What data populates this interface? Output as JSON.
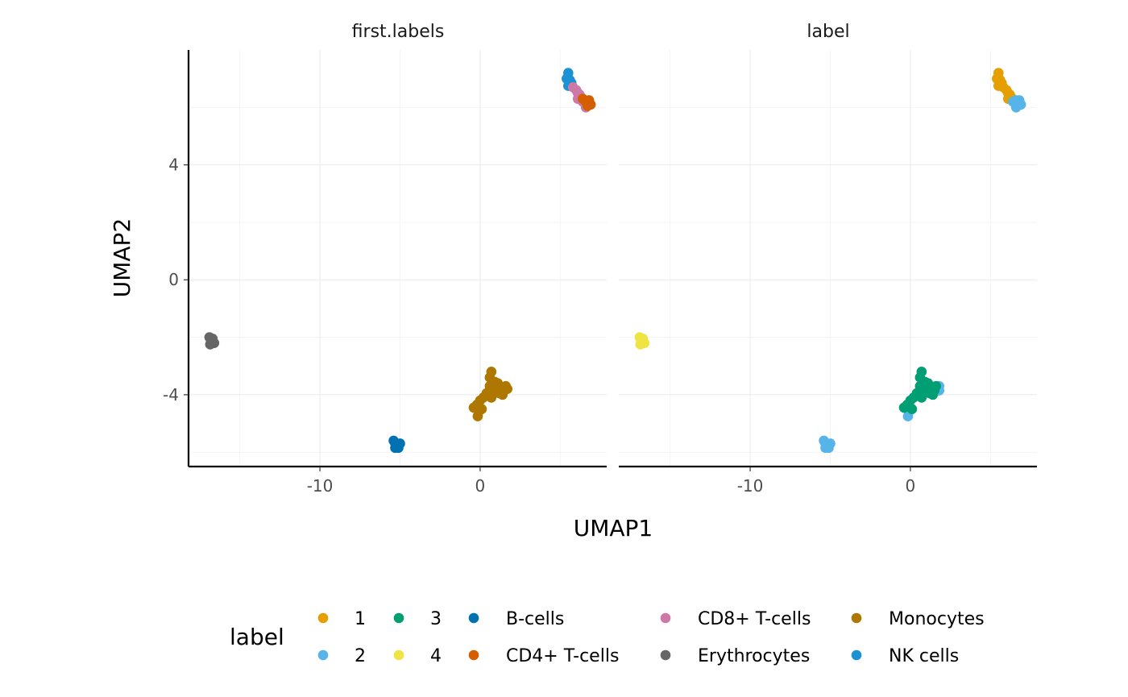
{
  "chart_data": {
    "type": "scatter",
    "xlabel": "UMAP1",
    "ylabel": "UMAP2",
    "xlim": [
      -18.2,
      7.9
    ],
    "ylim": [
      -6.5,
      8.0
    ],
    "x_ticks": [
      -10,
      0
    ],
    "y_ticks": [
      4,
      0,
      -4
    ],
    "grid": true,
    "legend_position": "bottom",
    "legend_title": "label",
    "legend": [
      {
        "label": "1",
        "color": "#E69F00"
      },
      {
        "label": "2",
        "color": "#56B4E9"
      },
      {
        "label": "3",
        "color": "#009E73"
      },
      {
        "label": "4",
        "color": "#F0E442"
      },
      {
        "label": "B-cells",
        "color": "#0072B2"
      },
      {
        "label": "CD4+ T-cells",
        "color": "#D55E00"
      },
      {
        "label": "CD8+ T-cells",
        "color": "#CC79A7"
      },
      {
        "label": "Erythrocytes",
        "color": "#666666"
      },
      {
        "label": "Monocytes",
        "color": "#AD7700"
      },
      {
        "label": "NK cells",
        "color": "#1C91D4"
      }
    ],
    "panels": [
      {
        "title": "first.labels",
        "series": [
          {
            "name": "NK cells",
            "color": "#1C91D4",
            "points": [
              [
                5.5,
                7.2
              ],
              [
                5.4,
                7.0
              ],
              [
                5.6,
                6.95
              ],
              [
                5.7,
                6.85
              ],
              [
                5.5,
                6.75
              ]
            ]
          },
          {
            "name": "CD8+ T-cells",
            "color": "#CC79A7",
            "points": [
              [
                5.8,
                6.7
              ],
              [
                6.0,
                6.6
              ],
              [
                6.1,
                6.5
              ],
              [
                6.2,
                6.45
              ],
              [
                6.3,
                6.35
              ],
              [
                6.1,
                6.3
              ],
              [
                6.4,
                6.2
              ],
              [
                6.6,
                6.0
              ]
            ]
          },
          {
            "name": "CD4+ T-cells",
            "color": "#D55E00",
            "points": [
              [
                6.4,
                6.3
              ],
              [
                6.6,
                6.2
              ],
              [
                6.8,
                6.25
              ],
              [
                6.9,
                6.1
              ],
              [
                6.7,
                6.05
              ]
            ]
          },
          {
            "name": "Erythrocytes",
            "color": "#666666",
            "points": [
              [
                -16.9,
                -2.0
              ],
              [
                -16.7,
                -2.05
              ],
              [
                -16.8,
                -2.15
              ],
              [
                -16.6,
                -2.2
              ],
              [
                -16.85,
                -2.25
              ]
            ]
          },
          {
            "name": "B-cells",
            "color": "#0072B2",
            "points": [
              [
                -5.4,
                -5.6
              ],
              [
                -5.3,
                -5.7
              ],
              [
                -5.2,
                -5.75
              ],
              [
                -5.0,
                -5.7
              ],
              [
                -5.3,
                -5.85
              ],
              [
                -5.1,
                -5.85
              ]
            ]
          },
          {
            "name": "Monocytes",
            "color": "#AD7700",
            "points": [
              [
                0.7,
                -3.2
              ],
              [
                0.6,
                -3.4
              ],
              [
                0.9,
                -3.55
              ],
              [
                0.6,
                -3.7
              ],
              [
                1.0,
                -3.75
              ],
              [
                1.3,
                -3.8
              ],
              [
                1.6,
                -3.7
              ],
              [
                1.7,
                -3.8
              ],
              [
                1.4,
                -4.0
              ],
              [
                1.2,
                -3.95
              ],
              [
                0.4,
                -3.95
              ],
              [
                0.2,
                -4.1
              ],
              [
                0.0,
                -4.2
              ],
              [
                -0.2,
                -4.35
              ],
              [
                -0.4,
                -4.45
              ],
              [
                0.1,
                -4.5
              ],
              [
                -0.1,
                -4.6
              ],
              [
                -0.15,
                -4.75
              ],
              [
                0.7,
                -4.1
              ],
              [
                1.1,
                -3.6
              ],
              [
                1.5,
                -3.85
              ],
              [
                0.8,
                -3.8
              ]
            ]
          }
        ]
      },
      {
        "title": "label",
        "series": [
          {
            "name": "1",
            "color": "#E69F00",
            "points": [
              [
                5.5,
                7.2
              ],
              [
                5.4,
                7.0
              ],
              [
                5.6,
                6.95
              ],
              [
                5.7,
                6.85
              ],
              [
                5.5,
                6.75
              ],
              [
                5.8,
                6.7
              ],
              [
                6.0,
                6.6
              ],
              [
                6.1,
                6.5
              ],
              [
                6.2,
                6.45
              ],
              [
                6.3,
                6.35
              ],
              [
                6.1,
                6.3
              ]
            ]
          },
          {
            "name": "2",
            "color": "#56B4E9",
            "points": [
              [
                6.4,
                6.2
              ],
              [
                6.6,
                6.0
              ],
              [
                6.7,
                6.1
              ],
              [
                6.8,
                6.25
              ],
              [
                6.9,
                6.1
              ],
              [
                6.6,
                6.25
              ],
              [
                -5.4,
                -5.6
              ],
              [
                -5.3,
                -5.7
              ],
              [
                -5.2,
                -5.75
              ],
              [
                -5.0,
                -5.7
              ],
              [
                -5.3,
                -5.85
              ],
              [
                -5.1,
                -5.85
              ],
              [
                1.8,
                -3.7
              ],
              [
                1.8,
                -3.85
              ],
              [
                -0.15,
                -4.75
              ],
              [
                -0.1,
                -4.6
              ]
            ]
          },
          {
            "name": "3",
            "color": "#009E73",
            "points": [
              [
                0.7,
                -3.2
              ],
              [
                0.6,
                -3.4
              ],
              [
                0.9,
                -3.55
              ],
              [
                0.6,
                -3.7
              ],
              [
                1.0,
                -3.75
              ],
              [
                1.3,
                -3.8
              ],
              [
                1.6,
                -3.7
              ],
              [
                1.4,
                -4.0
              ],
              [
                1.2,
                -3.95
              ],
              [
                0.4,
                -3.95
              ],
              [
                0.2,
                -4.1
              ],
              [
                0.0,
                -4.2
              ],
              [
                -0.2,
                -4.35
              ],
              [
                -0.4,
                -4.45
              ],
              [
                0.1,
                -4.5
              ],
              [
                0.7,
                -4.1
              ],
              [
                1.1,
                -3.6
              ],
              [
                1.5,
                -3.85
              ],
              [
                0.8,
                -3.8
              ]
            ]
          },
          {
            "name": "4",
            "color": "#F0E442",
            "points": [
              [
                -16.9,
                -2.0
              ],
              [
                -16.7,
                -2.05
              ],
              [
                -16.8,
                -2.15
              ],
              [
                -16.6,
                -2.2
              ],
              [
                -16.85,
                -2.25
              ]
            ]
          }
        ]
      }
    ]
  }
}
